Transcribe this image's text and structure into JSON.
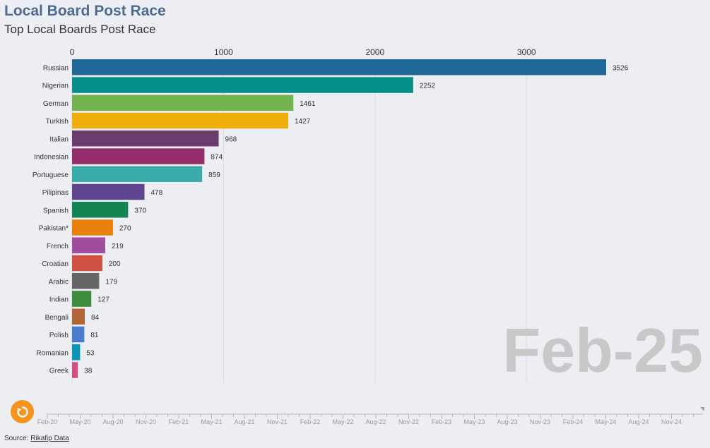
{
  "title": "Local Board Post Race",
  "subtitle": "Top Local Boards Post Race",
  "source_label": "Source:",
  "source_link": "Rikafip Data",
  "period_label": "Feb-25",
  "colors": {
    "title": "#4c6b92",
    "replay_button": "#f5931d",
    "period_label": "#c8c8c8"
  },
  "replay_icon": "replay-icon",
  "timeline": {
    "ticks": [
      "Feb-20",
      "May-20",
      "Aug-20",
      "Nov-20",
      "Feb-21",
      "May-21",
      "Aug-21",
      "Nov-21",
      "Feb-22",
      "May-22",
      "Aug-22",
      "Nov-22",
      "Feb-23",
      "May-23",
      "Aug-23",
      "Nov-23",
      "Feb-24",
      "May-24",
      "Aug-24",
      "Nov-24"
    ]
  },
  "chart_data": {
    "type": "bar",
    "orientation": "horizontal",
    "title": "Local Board Post Race",
    "subtitle": "Top Local Boards Post Race",
    "xlim": [
      0,
      3526
    ],
    "xticks": [
      0,
      1000,
      2000,
      3000
    ],
    "grid": true,
    "categories": [
      "Russian",
      "Nigerian",
      "German",
      "Turkish",
      "Italian",
      "Indonesian",
      "Portuguese",
      "Pilipinas",
      "Spanish",
      "Pakistan*",
      "French",
      "Croatian",
      "Arabic",
      "Indian",
      "Bengali",
      "Polish",
      "Romanian",
      "Greek"
    ],
    "values": [
      3526,
      2252,
      1461,
      1427,
      968,
      874,
      859,
      478,
      370,
      270,
      219,
      200,
      179,
      127,
      84,
      81,
      53,
      38
    ],
    "colors": [
      "#1f6796",
      "#048f8b",
      "#71b34d",
      "#efae0b",
      "#6b3d6c",
      "#952f6c",
      "#3bacaa",
      "#5e4491",
      "#128552",
      "#e8810c",
      "#a14c9e",
      "#cf5141",
      "#666666",
      "#3d8b3d",
      "#b26536",
      "#4a7ccd",
      "#0a96b8",
      "#cf4f84"
    ]
  }
}
